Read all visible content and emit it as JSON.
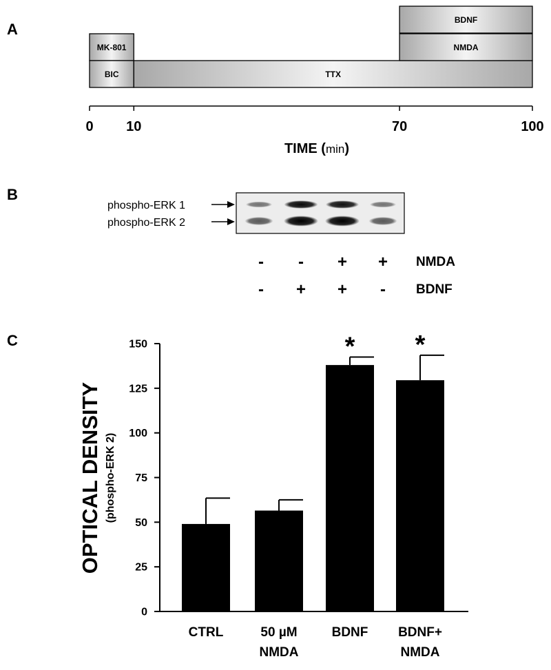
{
  "panels": {
    "a": "A",
    "b": "B",
    "c": "C"
  },
  "timeline": {
    "segments": [
      {
        "label": "MK-801",
        "start": 0,
        "end": 10,
        "row": 1
      },
      {
        "label": "BIC",
        "start": 0,
        "end": 10,
        "row": 0
      },
      {
        "label": "TTX",
        "start": 10,
        "end": 100,
        "row": 0
      },
      {
        "label": "NMDA",
        "start": 70,
        "end": 100,
        "row": 1
      },
      {
        "label": "BDNF",
        "start": 70,
        "end": 100,
        "row": 2
      }
    ],
    "ticks": [
      "0",
      "10",
      "70",
      "100"
    ],
    "tick_values": [
      0,
      10,
      70,
      100
    ],
    "axis_title": "TIME",
    "axis_unit": "min",
    "range": [
      0,
      100
    ]
  },
  "blot": {
    "bands": [
      "phospho-ERK 1",
      "phospho-ERK 2"
    ],
    "lane_intensity": {
      "erk1": [
        0.35,
        0.95,
        0.9,
        0.35
      ],
      "erk2": [
        0.5,
        1.0,
        1.0,
        0.5
      ]
    },
    "treatments": [
      {
        "label": "NMDA",
        "signs": [
          "-",
          "-",
          "+",
          "+"
        ]
      },
      {
        "label": "BDNF",
        "signs": [
          "-",
          "+",
          "+",
          "-"
        ]
      }
    ]
  },
  "chart_data": {
    "type": "bar",
    "categories": [
      {
        "line1": "CTRL",
        "line2": ""
      },
      {
        "line1": "50 µM",
        "line2": "NMDA"
      },
      {
        "line1": "BDNF",
        "line2": ""
      },
      {
        "line1": "BDNF+",
        "line2": "NMDA"
      }
    ],
    "values": [
      49,
      56.5,
      138,
      129.5
    ],
    "error": [
      14.5,
      6,
      4.5,
      14
    ],
    "significance": [
      "",
      "",
      "*",
      "*"
    ],
    "ylabel": "OPTICAL DENSITY",
    "ylabel_sub": "(phospho-ERK 2)",
    "ylim": [
      0,
      150
    ],
    "yticks": [
      "0",
      "25",
      "50",
      "75",
      "100",
      "125",
      "150"
    ],
    "ytick_values": [
      0,
      25,
      50,
      75,
      100,
      125,
      150
    ],
    "bar_color": "#000000",
    "grid": false
  }
}
